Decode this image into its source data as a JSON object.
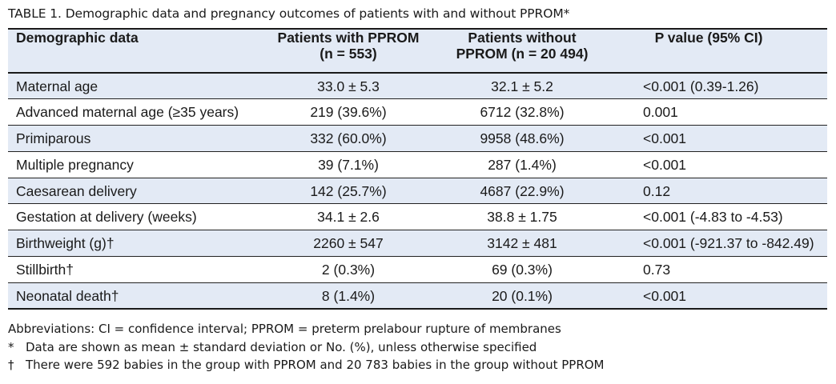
{
  "caption": {
    "label": "TABLE 1.",
    "text": "Demographic data and pregnancy outcomes of patients with and without PPROM*"
  },
  "table": {
    "headers": [
      [
        "Demographic data"
      ],
      [
        "Patients with PPROM",
        "(n = 553)"
      ],
      [
        "Patients without",
        "PPROM (n = 20 494)"
      ],
      [
        "P value (95% CI)"
      ]
    ],
    "rows": [
      [
        "Maternal age",
        "33.0 ± 5.3",
        "32.1 ± 5.2",
        "<0.001 (0.39-1.26)"
      ],
      [
        "Advanced maternal age (≥35 years)",
        "219 (39.6%)",
        "6712 (32.8%)",
        "0.001"
      ],
      [
        "Primiparous",
        "332 (60.0%)",
        "9958 (48.6%)",
        "<0.001"
      ],
      [
        "Multiple pregnancy",
        "39 (7.1%)",
        "287 (1.4%)",
        "<0.001"
      ],
      [
        "Caesarean delivery",
        "142 (25.7%)",
        "4687 (22.9%)",
        "0.12"
      ],
      [
        "Gestation at delivery (weeks)",
        "34.1 ± 2.6",
        "38.8 ± 1.75",
        "<0.001 (-4.83 to -4.53)"
      ],
      [
        "Birthweight (g)†",
        "2260 ± 547",
        "3142 ± 481",
        "<0.001 (-921.37 to -842.49)"
      ],
      [
        "Stillbirth†",
        "2 (0.3%)",
        "69 (0.3%)",
        "0.73"
      ],
      [
        "Neonatal death†",
        "8 (1.4%)",
        "20 (0.1%)",
        "<0.001"
      ]
    ]
  },
  "footnotes": {
    "abbreviations": "Abbreviations: CI = confidence interval; PPROM = preterm prelabour rupture of membranes",
    "notes": [
      {
        "mark": "*",
        "text": "Data are shown as mean ± standard deviation or No. (%), unless otherwise specified"
      },
      {
        "mark": "†",
        "text": "There were 592 babies in the group with PPROM and 20 783 babies in the group without PPROM"
      }
    ]
  },
  "colors": {
    "header_fill": "#e3eaf5",
    "row_shade": "#e3eaf5",
    "rule": "#1a1a1a"
  }
}
